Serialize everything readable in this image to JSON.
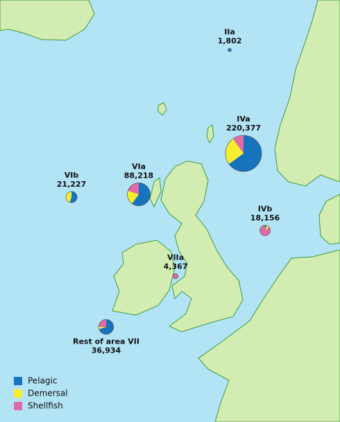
{
  "legend": {
    "items": [
      {
        "name": "Pelagic",
        "color": "#1674bf"
      },
      {
        "name": "Demersal",
        "color": "#f6ee2c"
      },
      {
        "name": "Shellfish",
        "color": "#e26aa6"
      }
    ]
  },
  "areas": [
    {
      "label": "IIa",
      "value": 1802,
      "value_label": "1,802",
      "shares": [
        100,
        0,
        0
      ]
    },
    {
      "label": "IVa",
      "value": 220377,
      "value_label": "220,377",
      "shares": [
        65,
        25,
        10
      ]
    },
    {
      "label": "VIa",
      "value": 88218,
      "value_label": "88,218",
      "shares": [
        60,
        20,
        20
      ]
    },
    {
      "label": "VIb",
      "value": 21227,
      "value_label": "21,227",
      "shares": [
        55,
        45,
        0
      ]
    },
    {
      "label": "IVb",
      "value": 18156,
      "value_label": "18,156",
      "shares": [
        5,
        10,
        85
      ]
    },
    {
      "label": "VIIa",
      "value": 4367,
      "value_label": "4,367",
      "shares": [
        0,
        0,
        100
      ]
    },
    {
      "label": "Rest of area VII",
      "value": 36934,
      "value_label": "36,934",
      "shares": [
        70,
        5,
        25
      ]
    }
  ]
}
